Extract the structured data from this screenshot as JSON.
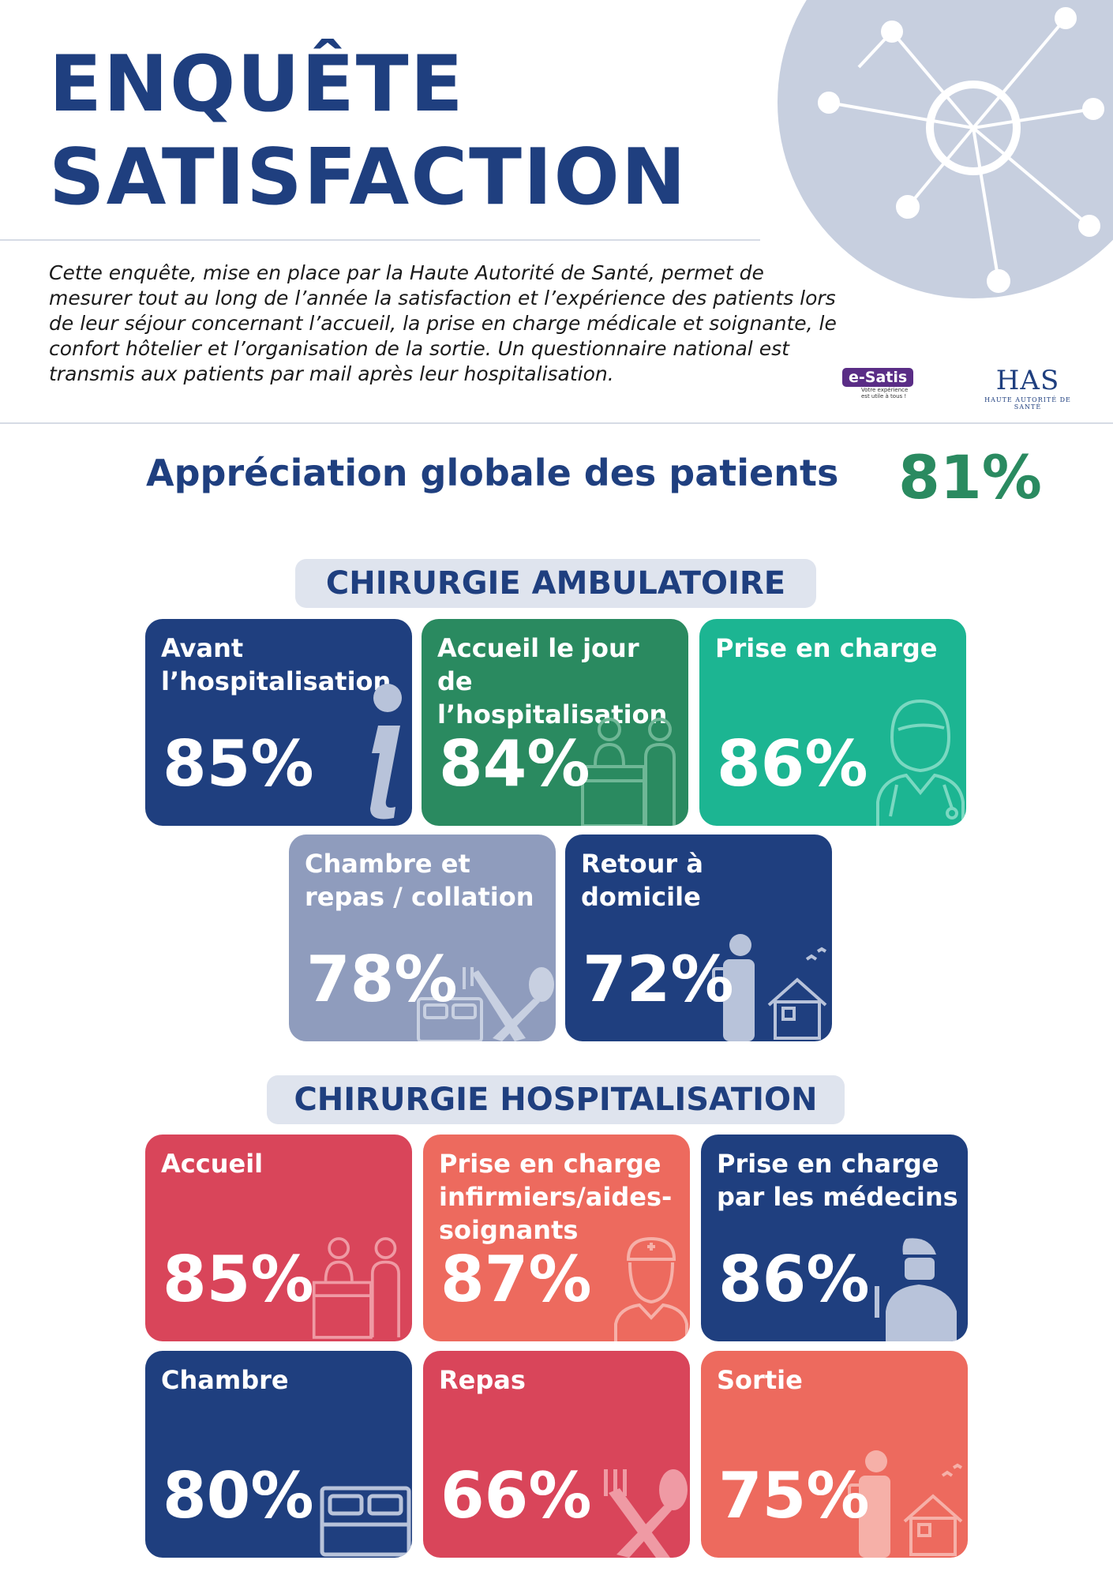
{
  "header": {
    "title_line1": "ENQUÊTE",
    "title_line2": "SATISFACTION",
    "intro": "Cette enquête, mise en place par la Haute Autorité de Santé, permet de mesurer tout au long de l’année la satisfaction et l’expérience des patients lors de leur séjour concernant l’accueil, la prise en charge médicale et soignante, le confort hôtelier et l’organisation de la sortie. Un questionnaire national est transmis aux patients par mail après leur hospitalisation."
  },
  "logos": {
    "esatis_name": "e-Satis",
    "esatis_tagline": "Votre expérience est utile à tous !",
    "has_name": "HAS",
    "has_subtitle": "HAUTE AUTORITÉ DE SANTÉ"
  },
  "global": {
    "label": "Appréciation globale des patients",
    "value": "81%"
  },
  "ambulatoire": {
    "heading": "CHIRURGIE AMBULATOIRE",
    "cards": [
      {
        "label": "Avant l’hospitalisation",
        "value": "85%",
        "icon": "info-icon"
      },
      {
        "label": "Accueil le jour de l’hospitalisation",
        "value": "84%",
        "icon": "reception-icon"
      },
      {
        "label": "Prise en charge",
        "value": "86%",
        "icon": "doctor-icon"
      },
      {
        "label": "Chambre et repas / collation",
        "value": "78%",
        "icon": "bed-cutlery-icon"
      },
      {
        "label": "Retour à domicile",
        "value": "72%",
        "icon": "patient-home-icon"
      }
    ]
  },
  "hospitalisation": {
    "heading": "CHIRURGIE HOSPITALISATION",
    "cards": [
      {
        "label": "Accueil",
        "value": "85%",
        "icon": "reception-icon"
      },
      {
        "label": "Prise en charge infirmiers/aides-soignants",
        "value": "87%",
        "icon": "nurse-icon"
      },
      {
        "label": "Prise en charge par les médecins",
        "value": "86%",
        "icon": "surgeon-icon"
      },
      {
        "label": "Chambre",
        "value": "80%",
        "icon": "bed-icon"
      },
      {
        "label": "Repas",
        "value": "66%",
        "icon": "cutlery-icon"
      },
      {
        "label": "Sortie",
        "value": "75%",
        "icon": "patient-home-icon"
      }
    ]
  },
  "colors": {
    "navy": "#1f3f7f",
    "green": "#2a8a60",
    "teal": "#1cb592",
    "grey": "#8f9cbd",
    "red": "#d9455a",
    "coral": "#ed6a5e",
    "pill_bg": "#dfe4ee"
  }
}
